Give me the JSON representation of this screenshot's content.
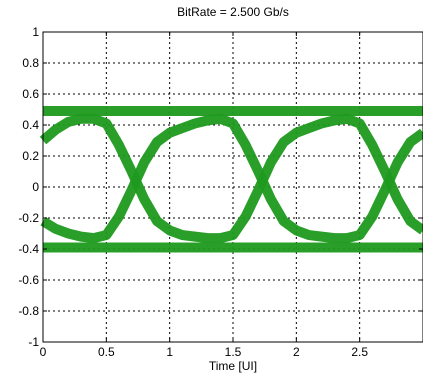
{
  "chart_data": {
    "type": "line",
    "title": "BitRate = 2.500 Gb/s",
    "xlabel": "Time [UI]",
    "ylabel": "",
    "xlim": [
      0,
      3
    ],
    "ylim": [
      -1,
      1
    ],
    "x_ticks": [
      0,
      0.5,
      1,
      1.5,
      2,
      2.5
    ],
    "x_tick_labels": [
      "0",
      "0.5",
      "1",
      "1.5",
      "2",
      "2.5"
    ],
    "y_ticks": [
      -1,
      -0.8,
      -0.6,
      -0.4,
      -0.2,
      0,
      0.2,
      0.4,
      0.6,
      0.8,
      1
    ],
    "y_tick_labels": [
      "-1",
      "-0.8",
      "-0.6",
      "-0.4",
      "-0.2",
      "0",
      "0.2",
      "0.4",
      "0.6",
      "0.8",
      "1"
    ],
    "grid": true,
    "legend": "none",
    "series_color": "#1e9a1e",
    "series": [
      {
        "x": [
          0,
          0.1,
          0.2,
          0.3,
          0.4,
          0.5,
          0.6,
          0.7,
          0.8,
          0.9,
          1.0,
          1.1,
          1.2,
          1.3,
          1.4,
          1.5,
          1.6,
          1.7,
          1.8,
          1.9,
          2.0,
          2.1,
          2.2,
          2.3,
          2.4,
          2.5,
          2.6,
          2.7,
          2.8,
          2.9,
          3.0
        ],
        "y": [
          0.49,
          0.49,
          0.49,
          0.49,
          0.49,
          0.49,
          0.49,
          0.49,
          0.49,
          0.49,
          0.49,
          0.49,
          0.49,
          0.49,
          0.49,
          0.49,
          0.49,
          0.49,
          0.49,
          0.49,
          0.49,
          0.49,
          0.49,
          0.49,
          0.49,
          0.49,
          0.49,
          0.49,
          0.49,
          0.49,
          0.49
        ]
      },
      {
        "x": [
          0,
          0.1,
          0.2,
          0.3,
          0.4,
          0.5,
          0.6,
          0.7,
          0.8,
          0.9,
          1.0,
          1.1,
          1.2,
          1.3,
          1.4,
          1.5,
          1.6,
          1.7,
          1.8,
          1.9,
          2.0,
          2.1,
          2.2,
          2.3,
          2.4,
          2.5,
          2.6,
          2.7,
          2.8,
          2.9,
          3.0
        ],
        "y": [
          -0.39,
          -0.39,
          -0.39,
          -0.39,
          -0.39,
          -0.39,
          -0.39,
          -0.39,
          -0.39,
          -0.39,
          -0.39,
          -0.39,
          -0.39,
          -0.39,
          -0.39,
          -0.39,
          -0.39,
          -0.39,
          -0.39,
          -0.39,
          -0.39,
          -0.39,
          -0.39,
          -0.39,
          -0.39,
          -0.39,
          -0.39,
          -0.39,
          -0.39,
          -0.39,
          -0.39
        ]
      },
      {
        "x": [
          0,
          0.1,
          0.2,
          0.3,
          0.4,
          0.5,
          0.6,
          0.7,
          0.8,
          0.9,
          1.0,
          1.1,
          1.2,
          1.3,
          1.4,
          1.5,
          1.6,
          1.7,
          1.8,
          1.9,
          2.0,
          2.1,
          2.2,
          2.3,
          2.4,
          2.5,
          2.6,
          2.7,
          2.8,
          2.9,
          3.0
        ],
        "y": [
          0.3,
          0.37,
          0.42,
          0.44,
          0.44,
          0.41,
          0.27,
          0.1,
          -0.08,
          -0.22,
          -0.28,
          -0.31,
          -0.32,
          -0.33,
          -0.33,
          -0.31,
          -0.19,
          -0.02,
          0.16,
          0.29,
          0.35,
          0.38,
          0.41,
          0.43,
          0.44,
          0.41,
          0.27,
          0.1,
          -0.08,
          -0.22,
          -0.28
        ]
      },
      {
        "x": [
          0,
          0.1,
          0.2,
          0.3,
          0.4,
          0.5,
          0.6,
          0.7,
          0.8,
          0.9,
          1.0,
          1.1,
          1.2,
          1.3,
          1.4,
          1.5,
          1.6,
          1.7,
          1.8,
          1.9,
          2.0,
          2.1,
          2.2,
          2.3,
          2.4,
          2.5,
          2.6,
          2.7,
          2.8,
          2.9,
          3.0
        ],
        "y": [
          -0.22,
          -0.27,
          -0.3,
          -0.32,
          -0.33,
          -0.31,
          -0.19,
          -0.02,
          0.16,
          0.29,
          0.35,
          0.38,
          0.41,
          0.43,
          0.44,
          0.41,
          0.27,
          0.1,
          -0.08,
          -0.22,
          -0.28,
          -0.31,
          -0.32,
          -0.33,
          -0.33,
          -0.31,
          -0.19,
          -0.02,
          0.16,
          0.29,
          0.35
        ]
      }
    ]
  }
}
